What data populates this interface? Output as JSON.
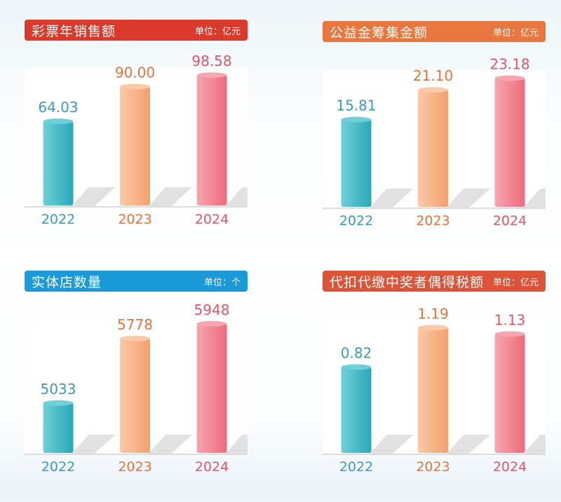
{
  "colors": {
    "bars": [
      "#2aa8b8",
      "#f4a06e",
      "#ee6b7c"
    ],
    "labels": [
      "#3a9ab8",
      "#e8733c",
      "#e2566a"
    ]
  },
  "chart_data": [
    {
      "type": "bar",
      "title": "彩票年销售额",
      "unit": "单位：亿元",
      "header_color": "#d93a2b",
      "categories": [
        "2022",
        "2023",
        "2024"
      ],
      "values": [
        64.03,
        90.0,
        98.58
      ],
      "labels": [
        "64.03",
        "90.00",
        "98.58"
      ],
      "ylim": [
        0,
        105
      ]
    },
    {
      "type": "bar",
      "title": "公益金筹集金额",
      "unit": "单位：亿元",
      "header_color": "#e8773f",
      "categories": [
        "2022",
        "2023",
        "2024"
      ],
      "values": [
        15.81,
        21.1,
        23.18
      ],
      "labels": [
        "15.81",
        "21.10",
        "23.18"
      ],
      "ylim": [
        0,
        25
      ]
    },
    {
      "type": "bar",
      "title": "实体店数量",
      "unit": "单位：个",
      "header_color": "#1a9ad8",
      "categories": [
        "2022",
        "2023",
        "2024"
      ],
      "values": [
        5033,
        5778,
        5948
      ],
      "labels": [
        "5033",
        "5778",
        "5948"
      ],
      "ylim": [
        4440,
        6100
      ]
    },
    {
      "type": "bar",
      "title": "代扣代缴中奖者偶得税额",
      "unit": "单位：亿元",
      "header_color": "#dc5438",
      "categories": [
        "2022",
        "2023",
        "2024"
      ],
      "values": [
        0.82,
        1.19,
        1.13
      ],
      "labels": [
        "0.82",
        "1.19",
        "1.13"
      ],
      "ylim": [
        0,
        1.35
      ]
    }
  ]
}
